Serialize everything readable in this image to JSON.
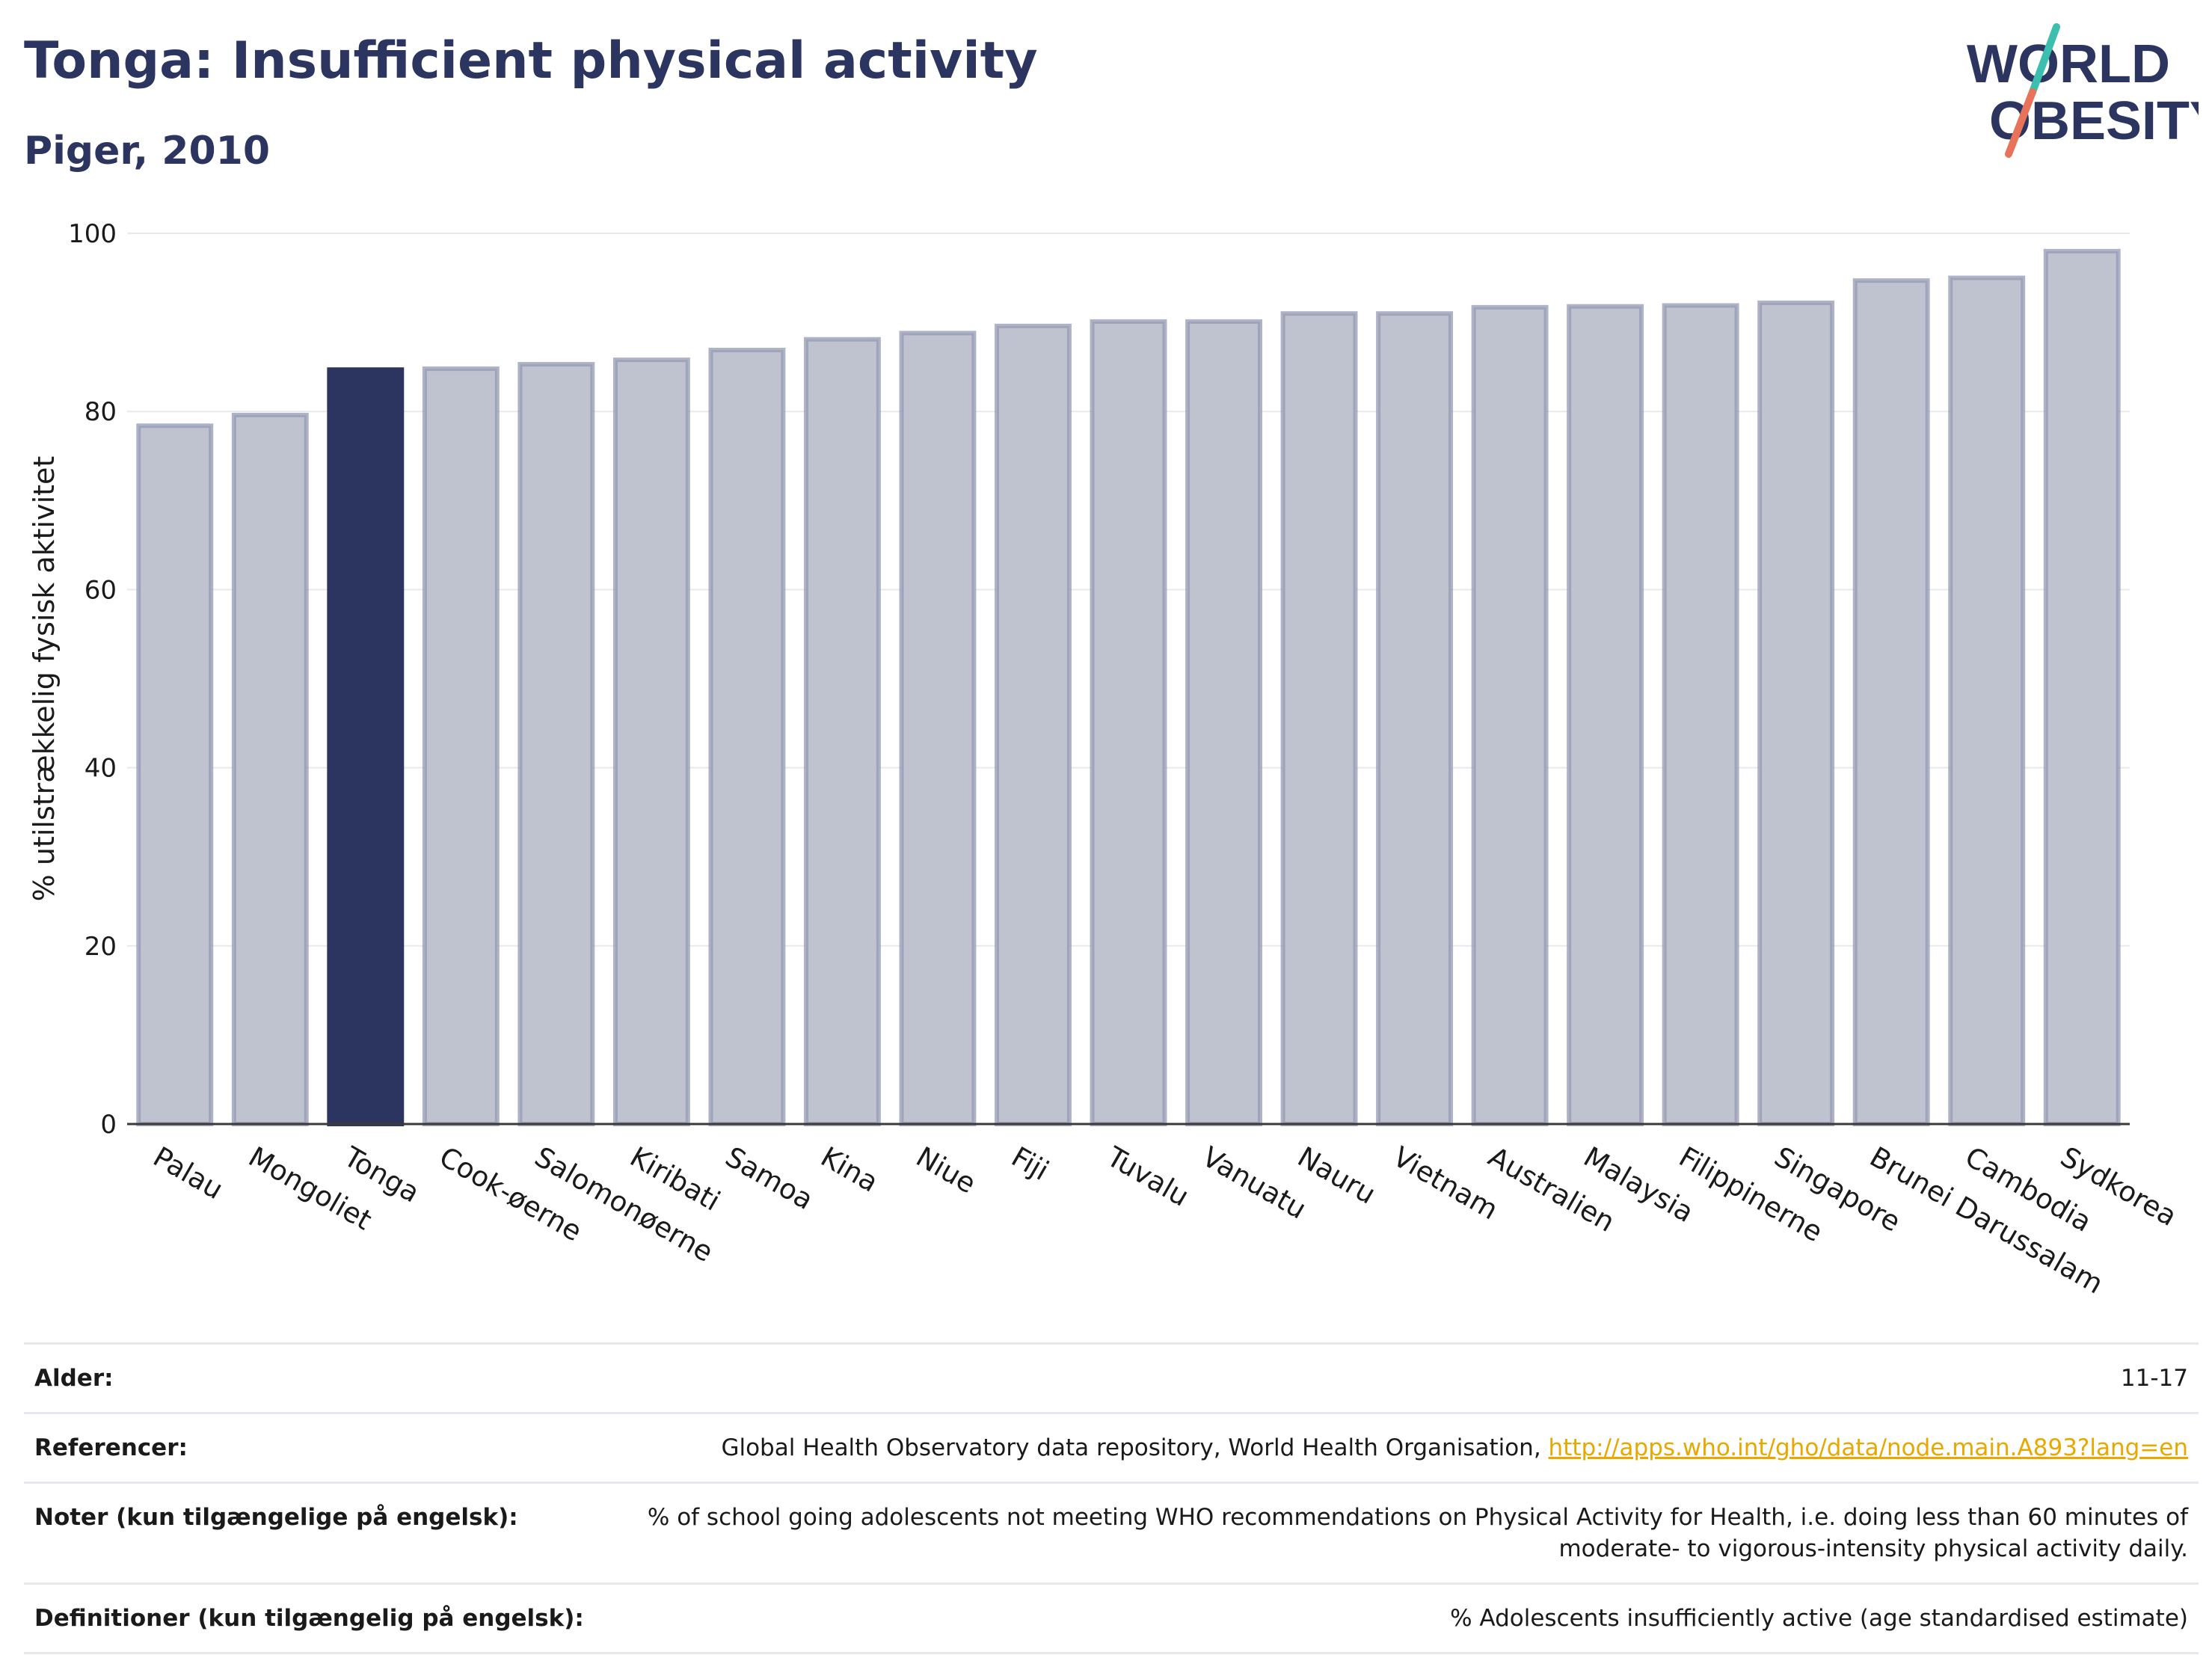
{
  "header": {
    "title": "Tonga: Insufficient physical activity",
    "subtitle": "Piger, 2010"
  },
  "logo": {
    "line1": "WORLD",
    "line2": "OBESITY",
    "accent1": "#3cbfae",
    "accent2": "#e8735a",
    "color": "#2b3560"
  },
  "colors": {
    "highlight": "#2b3560",
    "bar": "#bfc2cf",
    "bar_border": "#9499b3"
  },
  "chart_data": {
    "type": "bar",
    "title": "Tonga: Insufficient physical activity",
    "subtitle": "Piger, 2010",
    "ylabel": "% utilstrækkelig fysisk aktivitet",
    "xlabel": "",
    "ylim": [
      0,
      100
    ],
    "yticks": [
      0,
      20,
      40,
      60,
      80,
      100
    ],
    "grid": true,
    "highlight": "Tonga",
    "categories": [
      "Palau",
      "Mongoliet",
      "Tonga",
      "Cook-øerne",
      "Salomonøerne",
      "Kiribati",
      "Samoa",
      "Kina",
      "Niue",
      "Fiji",
      "Tuvalu",
      "Vanuatu",
      "Nauru",
      "Vietnam",
      "Australien",
      "Malaysia",
      "Filippinerne",
      "Singapore",
      "Brunei Darussalam",
      "Cambodia",
      "Sydkorea"
    ],
    "values": [
      78.4,
      79.6,
      84.7,
      84.8,
      85.3,
      85.8,
      86.9,
      88.1,
      88.8,
      89.6,
      90.1,
      90.1,
      91.0,
      91.0,
      91.7,
      91.8,
      91.9,
      92.2,
      94.7,
      95.0,
      98.0
    ]
  },
  "footer": {
    "rows": [
      {
        "label": "Alder:",
        "value": "11-17"
      },
      {
        "label": "Referencer:",
        "value": "Global Health Observatory data repository, World Health Organisation, ",
        "link": "http://apps.who.int/gho/data/node.main.A893?lang=en"
      },
      {
        "label": "Noter (kun tilgængelige på engelsk):",
        "value": "% of school going adolescents not meeting WHO recommendations on Physical Activity for Health, i.e. doing less than 60 minutes of moderate- to vigorous-intensity physical activity daily."
      },
      {
        "label": "Definitioner (kun tilgængelig på engelsk):",
        "value": "% Adolescents insufficiently active (age standardised estimate)"
      }
    ]
  }
}
